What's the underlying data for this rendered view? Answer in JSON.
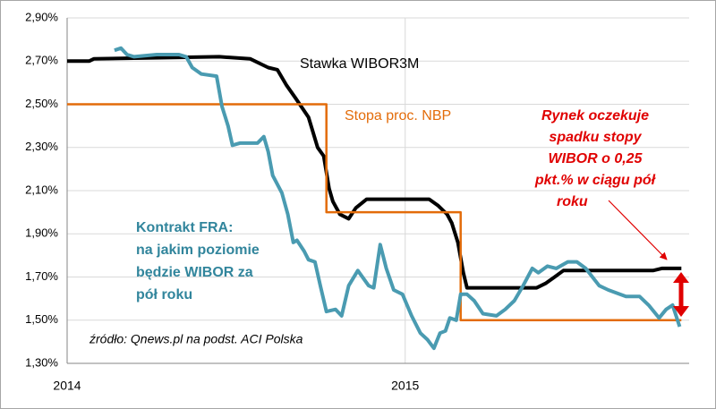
{
  "chart_data": {
    "type": "line",
    "xlim": [
      2014,
      2015.84
    ],
    "xticks": [
      2014,
      2015
    ],
    "ylim": [
      1.3,
      2.9
    ],
    "yticks": [
      {
        "value": 1.3,
        "label": "1,30%"
      },
      {
        "value": 1.5,
        "label": "1,50%"
      },
      {
        "value": 1.7,
        "label": "1,70%"
      },
      {
        "value": 1.9,
        "label": "1,90%"
      },
      {
        "value": 2.1,
        "label": "2,10%"
      },
      {
        "value": 2.3,
        "label": "2,30%"
      },
      {
        "value": 2.5,
        "label": "2,50%"
      },
      {
        "value": 2.7,
        "label": "2,70%"
      },
      {
        "value": 2.9,
        "label": "2,90%"
      }
    ],
    "grid": true,
    "series": [
      {
        "name": "Stawka WIBOR3M",
        "color": "#000000",
        "x": [
          2014,
          2014.066,
          2014.079,
          2014.45,
          2014.542,
          2014.595,
          2014.622,
          2014.648,
          2014.675,
          2014.714,
          2014.741,
          2014.759,
          2014.775,
          2014.786,
          2014.807,
          2014.833,
          2014.854,
          2014.886,
          2015.071,
          2015.098,
          2015.124,
          2015.138,
          2015.156,
          2015.172,
          2015.183,
          2015.389,
          2015.415,
          2015.442,
          2015.468,
          2015.733,
          2015.759,
          2015.817
        ],
        "values": [
          2.7,
          2.7,
          2.71,
          2.72,
          2.71,
          2.67,
          2.66,
          2.59,
          2.53,
          2.44,
          2.3,
          2.26,
          2.11,
          2.05,
          1.99,
          1.97,
          2.02,
          2.06,
          2.06,
          2.03,
          1.99,
          1.95,
          1.86,
          1.72,
          1.65,
          1.65,
          1.67,
          1.7,
          1.73,
          1.73,
          1.74,
          1.74
        ]
      },
      {
        "name": "Stopa proc. NBP",
        "color": "#e36c0a",
        "x": [
          2014,
          2014.767,
          2014.767,
          2015.164,
          2015.164,
          2015.817
        ],
        "values": [
          2.5,
          2.5,
          2.0,
          2.0,
          1.5,
          1.5
        ]
      },
      {
        "name": "Kontrakt FRA",
        "color": "#4a9bb1",
        "x": [
          2014.14,
          2014.159,
          2014.177,
          2014.198,
          2014.265,
          2014.331,
          2014.352,
          2014.37,
          2014.397,
          2014.442,
          2014.458,
          2014.476,
          2014.489,
          2014.511,
          2014.563,
          2014.582,
          2014.595,
          2014.608,
          2014.635,
          2014.653,
          2014.669,
          2014.68,
          2014.701,
          2014.714,
          2014.733,
          2014.749,
          2014.767,
          2014.794,
          2014.812,
          2014.833,
          2014.86,
          2014.892,
          2014.907,
          2014.926,
          2014.944,
          2014.966,
          2014.992,
          2015.019,
          2015.045,
          2015.066,
          2015.085,
          2015.103,
          2015.119,
          2015.132,
          2015.151,
          2015.164,
          2015.183,
          2015.204,
          2015.23,
          2015.27,
          2015.296,
          2015.323,
          2015.349,
          2015.376,
          2015.394,
          2015.421,
          2015.447,
          2015.481,
          2015.508,
          2015.534,
          2015.574,
          2015.601,
          2015.653,
          2015.693,
          2015.72,
          2015.751,
          2015.772,
          2015.791,
          2015.812
        ],
        "values": [
          2.75,
          2.76,
          2.73,
          2.72,
          2.73,
          2.73,
          2.72,
          2.67,
          2.64,
          2.63,
          2.49,
          2.4,
          2.31,
          2.32,
          2.32,
          2.35,
          2.28,
          2.17,
          2.09,
          1.99,
          1.86,
          1.87,
          1.82,
          1.78,
          1.77,
          1.66,
          1.54,
          1.55,
          1.52,
          1.66,
          1.73,
          1.66,
          1.65,
          1.85,
          1.74,
          1.64,
          1.62,
          1.52,
          1.44,
          1.41,
          1.37,
          1.44,
          1.45,
          1.51,
          1.5,
          1.62,
          1.62,
          1.59,
          1.53,
          1.52,
          1.55,
          1.59,
          1.66,
          1.74,
          1.72,
          1.75,
          1.74,
          1.77,
          1.77,
          1.74,
          1.66,
          1.64,
          1.61,
          1.61,
          1.57,
          1.51,
          1.55,
          1.57,
          1.47
        ]
      }
    ],
    "annotations": {
      "wibor": "Stawka WIBOR3M",
      "nbp": "Stopa proc. NBP",
      "fra": [
        "Kontrakt FRA:",
        "na jakim poziomie",
        "będzie WIBOR za",
        "pół roku"
      ],
      "market": [
        "Rynek oczekuje",
        "spadku stopy",
        "WIBOR o 0,25",
        "pkt.% w ciągu pół",
        "roku"
      ],
      "source": "źródło: Qnews.pl na podst. ACI Polska"
    }
  }
}
